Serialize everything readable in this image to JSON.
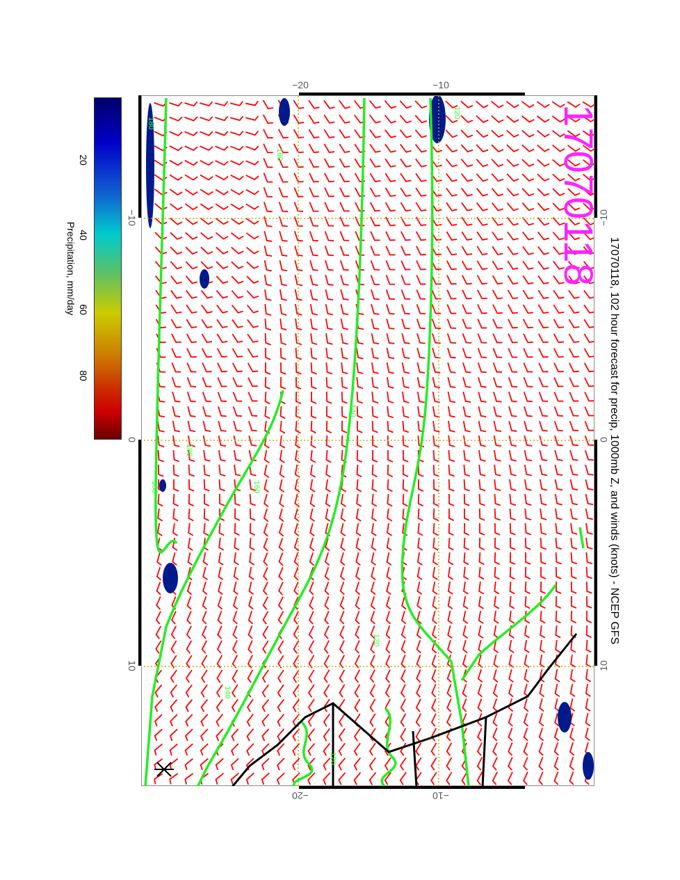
{
  "title": "17070118, 102 hour forecast for precip, 1000mb Z, and winds (knots) - NCEP GFS",
  "date_stamp": "17070118",
  "axes": {
    "longitude_labels": [
      "−10",
      "0",
      "10"
    ],
    "latitude_labels": [
      "−20",
      "−10"
    ]
  },
  "colorbar": {
    "label": "Precipitation, mm/day",
    "ticks": [
      "20",
      "40",
      "60",
      "80"
    ],
    "range": [
      0,
      100
    ],
    "colors": [
      "#00006a",
      "#0000c8",
      "#00cccc",
      "#cccc00",
      "#cc0000",
      "#6a0000"
    ]
  },
  "contour_labels": [
    "180",
    "160",
    "120",
    "180",
    "160",
    "140",
    "120",
    "120",
    "160",
    "140",
    "120"
  ],
  "colors": {
    "contour": "#22ee22",
    "barb": "#ff0000",
    "precip": "#001a8c",
    "coast": "#000000",
    "grid": "#ccaa00",
    "stamp": "#ff22ff"
  }
}
